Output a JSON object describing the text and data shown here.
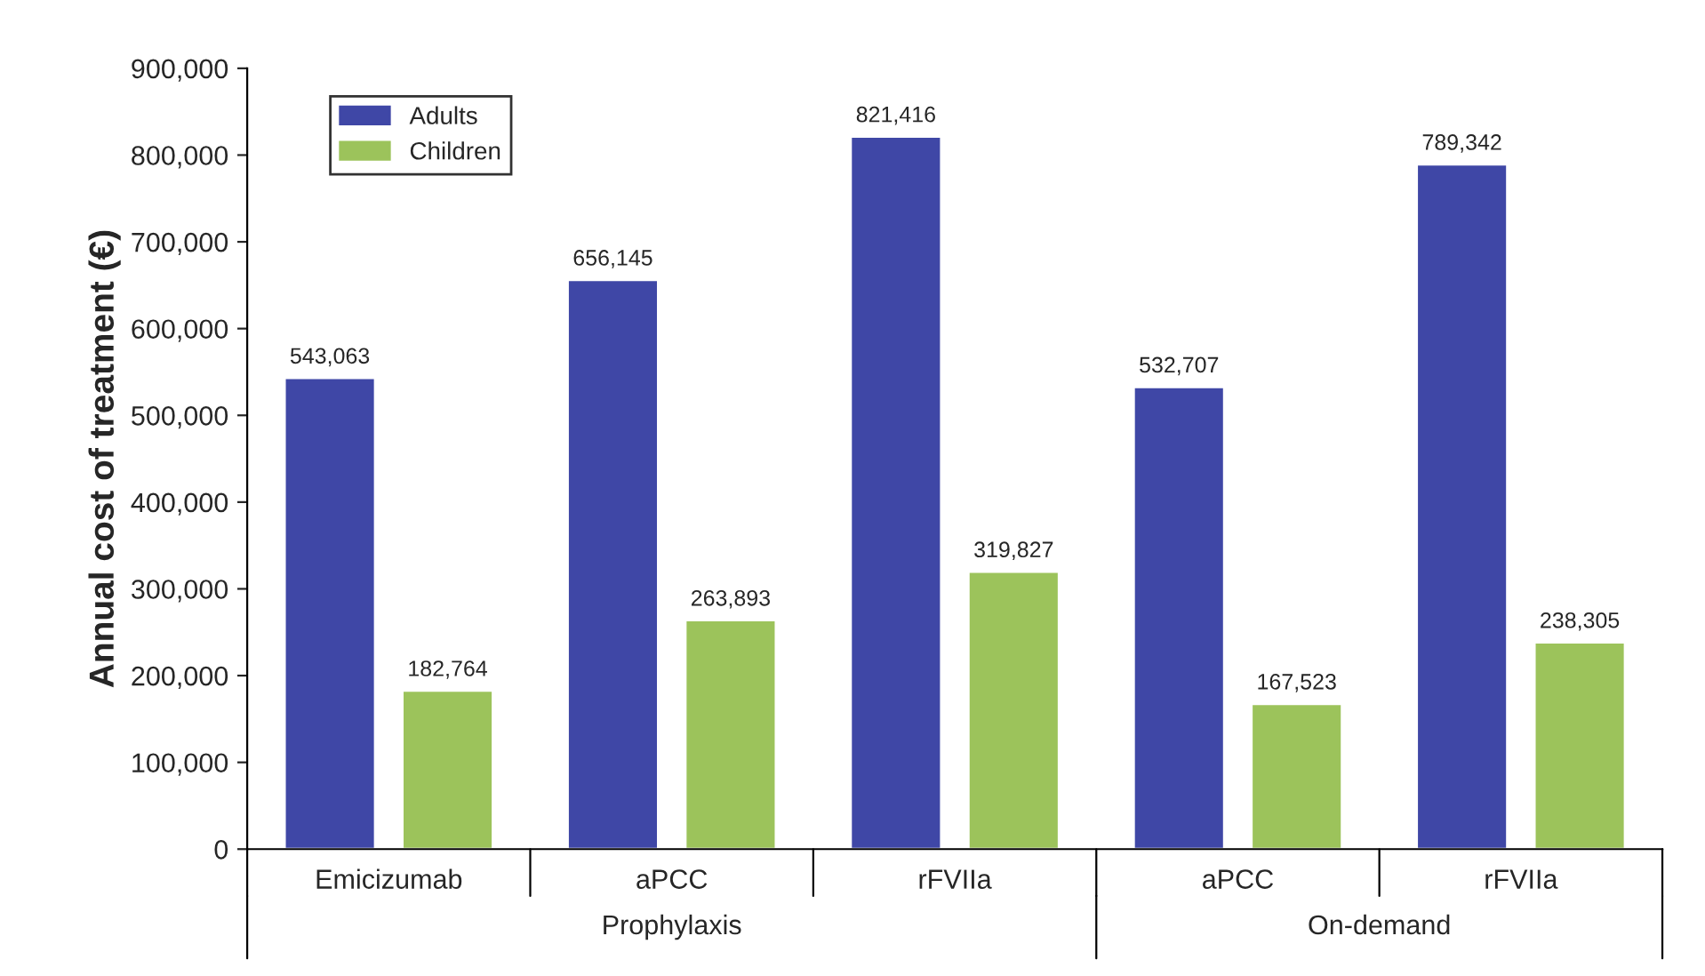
{
  "chart_data": {
    "type": "bar",
    "ylabel": "Annual cost of treatment (€)",
    "categories": [
      "Emicizumab",
      "aPCC",
      "rFVIIa",
      "aPCC",
      "rFVIIa"
    ],
    "series": [
      {
        "name": "Adults",
        "color": "#3f47a6",
        "values": [
          543063,
          656145,
          821416,
          532707,
          789342
        ],
        "value_labels": [
          "543,063",
          "656,145",
          "821,416",
          "532,707",
          "789,342"
        ]
      },
      {
        "name": "Children",
        "color": "#9cc35b",
        "values": [
          182764,
          263893,
          319827,
          167523,
          238305
        ],
        "value_labels": [
          "182,764",
          "263,893",
          "319,827",
          "167,523",
          "238,305"
        ]
      }
    ],
    "annotations": [
      "Prophylaxis",
      "On-demand"
    ],
    "ylim": [
      0,
      900000
    ],
    "yticks": [
      {
        "value": 0,
        "label": "0"
      },
      {
        "value": 100000,
        "label": "100,000"
      },
      {
        "value": 200000,
        "label": "200,000"
      },
      {
        "value": 300000,
        "label": "300,000"
      },
      {
        "value": 400000,
        "label": "400,000"
      },
      {
        "value": 500000,
        "label": "500,000"
      },
      {
        "value": 600000,
        "label": "600,000"
      },
      {
        "value": 700000,
        "label": "700,000"
      },
      {
        "value": 800000,
        "label": "800,000"
      },
      {
        "value": 900000,
        "label": "900,000"
      }
    ],
    "legend": "top left",
    "grid": false
  }
}
